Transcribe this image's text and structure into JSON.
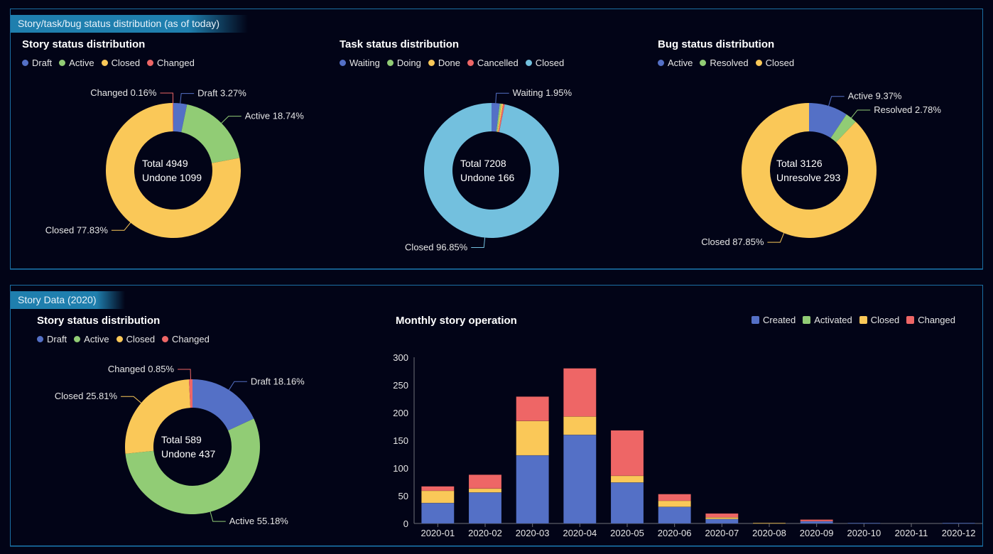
{
  "colors": {
    "blue": "#5470c6",
    "green": "#91cc75",
    "yellow": "#fac858",
    "red": "#ee6666",
    "cyan": "#73c0de",
    "panel_border": "#1b6fa3",
    "header_bg": "#1f7fae",
    "background": "#020417"
  },
  "top_panel": {
    "header": "Story/task/bug status distribution (as of today)"
  },
  "bottom_panel": {
    "header": "Story Data (2020)"
  },
  "chart_data": [
    {
      "type": "pie",
      "id": "story-today",
      "title": "Story status distribution",
      "legend": [
        "Draft",
        "Active",
        "Closed",
        "Changed"
      ],
      "slices": [
        {
          "name": "Draft",
          "percent": 3.27,
          "color": "#5470c6",
          "label": "Draft  3.27%"
        },
        {
          "name": "Active",
          "percent": 18.74,
          "color": "#91cc75",
          "label": "Active  18.74%"
        },
        {
          "name": "Closed",
          "percent": 77.83,
          "color": "#fac858",
          "label": "Closed  77.83%"
        },
        {
          "name": "Changed",
          "percent": 0.16,
          "color": "#ee6666",
          "label": "Changed  0.16%"
        }
      ],
      "center": [
        {
          "label": "Total",
          "value": "4949"
        },
        {
          "label": "Undone",
          "value": "1099"
        }
      ]
    },
    {
      "type": "pie",
      "id": "task-today",
      "title": "Task status distribution",
      "legend": [
        "Waiting",
        "Doing",
        "Done",
        "Cancelled",
        "Closed"
      ],
      "slices": [
        {
          "name": "Waiting",
          "percent": 1.95,
          "color": "#5470c6",
          "label": "Waiting  1.95%"
        },
        {
          "name": "Doing",
          "percent": 0.4,
          "color": "#91cc75",
          "label": ""
        },
        {
          "name": "Done",
          "percent": 0.4,
          "color": "#fac858",
          "label": ""
        },
        {
          "name": "Cancelled",
          "percent": 0.4,
          "color": "#ee6666",
          "label": ""
        },
        {
          "name": "Closed",
          "percent": 96.85,
          "color": "#73c0de",
          "label": "Closed  96.85%"
        }
      ],
      "center": [
        {
          "label": "Total",
          "value": "7208"
        },
        {
          "label": "Undone",
          "value": "166"
        }
      ]
    },
    {
      "type": "pie",
      "id": "bug-today",
      "title": "Bug status distribution",
      "legend": [
        "Active",
        "Resolved",
        "Closed"
      ],
      "slices": [
        {
          "name": "Active",
          "percent": 9.37,
          "color": "#5470c6",
          "label": "Active  9.37%"
        },
        {
          "name": "Resolved",
          "percent": 2.78,
          "color": "#91cc75",
          "label": "Resolved  2.78%"
        },
        {
          "name": "Closed",
          "percent": 87.85,
          "color": "#fac858",
          "label": "Closed  87.85%"
        }
      ],
      "center": [
        {
          "label": "Total",
          "value": "3126"
        },
        {
          "label": "Unresolve",
          "value": "293"
        }
      ]
    },
    {
      "type": "pie",
      "id": "story-2020",
      "title": "Story status distribution",
      "legend": [
        "Draft",
        "Active",
        "Closed",
        "Changed"
      ],
      "slices": [
        {
          "name": "Draft",
          "percent": 18.16,
          "color": "#5470c6",
          "label": "Draft  18.16%"
        },
        {
          "name": "Active",
          "percent": 55.18,
          "color": "#91cc75",
          "label": "Active  55.18%"
        },
        {
          "name": "Closed",
          "percent": 25.81,
          "color": "#fac858",
          "label": "Closed  25.81%"
        },
        {
          "name": "Changed",
          "percent": 0.85,
          "color": "#ee6666",
          "label": "Changed  0.85%"
        }
      ],
      "center": [
        {
          "label": "Total",
          "value": "589"
        },
        {
          "label": "Undone",
          "value": "437"
        }
      ]
    },
    {
      "type": "bar",
      "stacked": true,
      "id": "monthly-story",
      "title": "Monthly story operation",
      "categories": [
        "2020-01",
        "2020-02",
        "2020-03",
        "2020-04",
        "2020-05",
        "2020-06",
        "2020-07",
        "2020-08",
        "2020-09",
        "2020-10",
        "2020-11",
        "2020-12"
      ],
      "series": [
        {
          "name": "Created",
          "color": "#5470c6",
          "values": [
            37,
            56,
            123,
            160,
            74,
            30,
            8,
            0,
            4,
            1,
            0,
            1
          ]
        },
        {
          "name": "Activated",
          "color": "#91cc75",
          "values": [
            0,
            0,
            0,
            0,
            0,
            0,
            0,
            0,
            0,
            0,
            0,
            0
          ]
        },
        {
          "name": "Closed",
          "color": "#fac858",
          "values": [
            22,
            7,
            62,
            33,
            12,
            11,
            3,
            1,
            0,
            0,
            0,
            0
          ]
        },
        {
          "name": "Changed",
          "color": "#ee6666",
          "values": [
            8,
            25,
            44,
            87,
            82,
            12,
            7,
            0,
            3,
            0,
            0,
            0
          ]
        }
      ],
      "yticks": [
        0,
        50,
        100,
        150,
        200,
        250,
        300
      ],
      "ylim": [
        0,
        300
      ],
      "legend_position": "top-right",
      "grid": false
    }
  ]
}
